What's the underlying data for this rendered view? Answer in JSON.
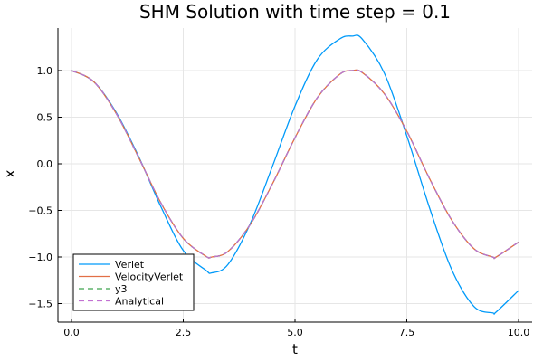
{
  "chart_data": {
    "type": "line",
    "title": "SHM Solution with time step = 0.1",
    "xlabel": "t",
    "ylabel": "x",
    "xlim": [
      0,
      10
    ],
    "ylim": [
      -1.6,
      1.4
    ],
    "grid": true,
    "legend_position": "bottom-left",
    "x_ticks": [
      0,
      2.5,
      5,
      7.5,
      10
    ],
    "x_tick_labels": [
      "0.0",
      "2.5",
      "5.0",
      "7.5",
      "10.0"
    ],
    "y_ticks": [
      1.0,
      0.5,
      0.0,
      -0.5,
      -1.0,
      -1.5
    ],
    "y_tick_labels": [
      "1.0",
      "0.5",
      "0.0",
      "−0.5",
      "−1.0",
      "−1.5"
    ],
    "x": [
      0,
      0.5,
      1.0,
      1.5,
      2.0,
      2.5,
      3.0,
      3.14,
      3.5,
      4.0,
      4.5,
      5.0,
      5.5,
      6.0,
      6.28,
      6.5,
      7.0,
      7.5,
      8.0,
      8.5,
      9.0,
      9.42,
      9.5,
      10.0
    ],
    "series": [
      {
        "name": "Verlet",
        "color": "#009af9",
        "dash": "solid",
        "values": [
          1.0,
          0.88,
          0.55,
          0.08,
          -0.46,
          -0.93,
          -1.14,
          -1.17,
          -1.08,
          -0.64,
          -0.02,
          0.62,
          1.12,
          1.34,
          1.37,
          1.34,
          0.97,
          0.3,
          -0.46,
          -1.13,
          -1.53,
          -1.6,
          -1.59,
          -1.36
        ]
      },
      {
        "name": "VelocityVerlet",
        "color": "#e26f46",
        "dash": "solid",
        "values": [
          1.0,
          0.88,
          0.54,
          0.07,
          -0.42,
          -0.8,
          -0.99,
          -1.0,
          -0.94,
          -0.65,
          -0.21,
          0.28,
          0.71,
          0.96,
          1.0,
          0.98,
          0.75,
          0.35,
          -0.15,
          -0.6,
          -0.91,
          -1.0,
          -1.0,
          -0.84
        ]
      },
      {
        "name": "y3",
        "color": "#3da44d",
        "dash": "dashed",
        "values": [
          1.0,
          0.88,
          0.54,
          0.07,
          -0.42,
          -0.8,
          -0.99,
          -1.0,
          -0.94,
          -0.65,
          -0.21,
          0.28,
          0.71,
          0.96,
          1.0,
          0.98,
          0.75,
          0.35,
          -0.15,
          -0.6,
          -0.91,
          -1.0,
          -1.0,
          -0.84
        ]
      },
      {
        "name": "Analytical",
        "color": "#c271d2",
        "dash": "dashed",
        "values": [
          1.0,
          0.88,
          0.54,
          0.07,
          -0.42,
          -0.8,
          -0.99,
          -1.0,
          -0.94,
          -0.65,
          -0.21,
          0.28,
          0.71,
          0.96,
          1.0,
          0.98,
          0.75,
          0.35,
          -0.15,
          -0.6,
          -0.91,
          -1.0,
          -1.0,
          -0.84
        ]
      }
    ]
  }
}
